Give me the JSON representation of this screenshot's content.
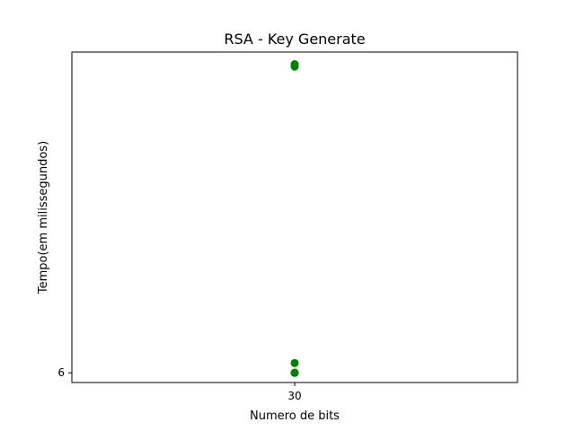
{
  "chart_data": {
    "type": "scatter",
    "title": "RSA - Key Generate",
    "xlabel": "Numero de bits",
    "ylabel": "Tempo(em milissegundos)",
    "x_ticks": [
      30
    ],
    "x_tick_labels": [
      "30"
    ],
    "y_ticks": [
      6
    ],
    "y_tick_labels": [
      "6"
    ],
    "xlim": [
      29.5,
      30.5
    ],
    "ylim": [
      5.96,
      7.32
    ],
    "grid": false,
    "legend": "none",
    "series": [
      {
        "color": "#008000",
        "points": [
          {
            "x": 30,
            "y": 6.0
          },
          {
            "x": 30,
            "y": 6.0
          },
          {
            "x": 30,
            "y": 6.0
          },
          {
            "x": 30,
            "y": 6.04
          },
          {
            "x": 30,
            "y": 7.26
          },
          {
            "x": 30,
            "y": 7.27
          }
        ]
      }
    ]
  }
}
